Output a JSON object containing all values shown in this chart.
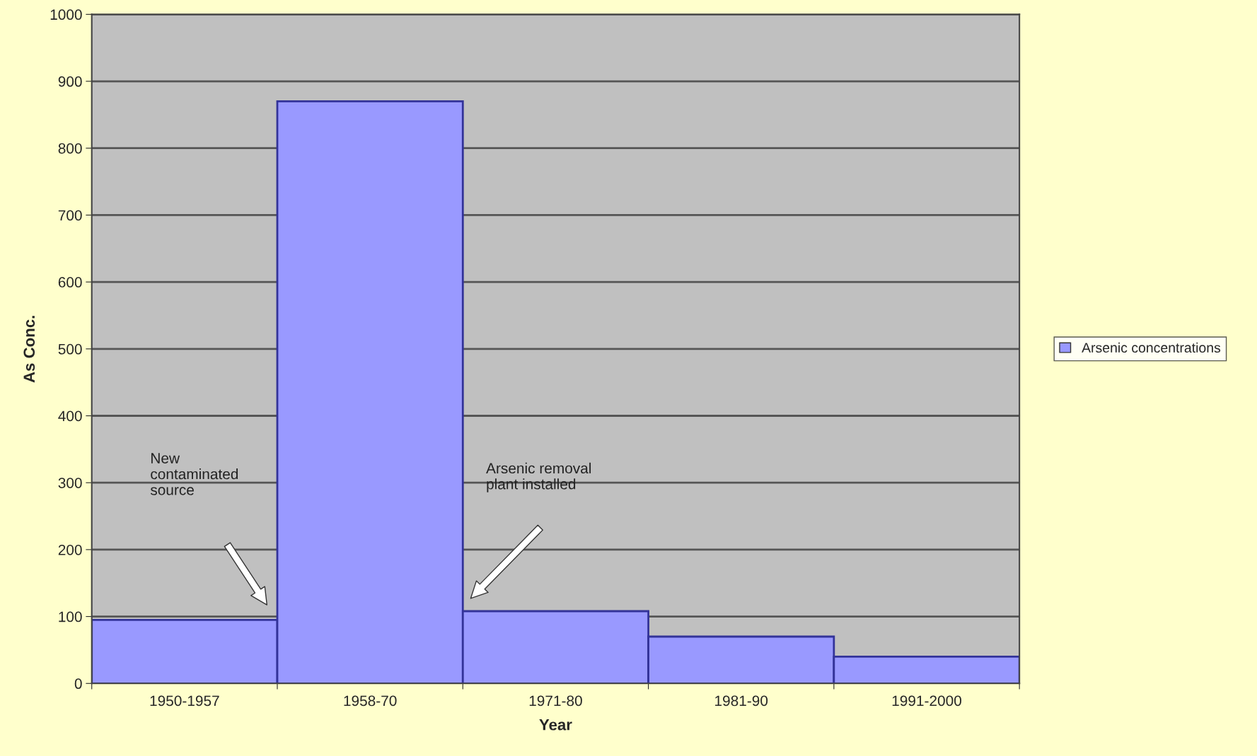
{
  "chart_data": {
    "type": "bar",
    "xlabel": "Year",
    "ylabel": "As Conc.",
    "categories": [
      "1950-1957",
      "1958-70",
      "1971-80",
      "1981-90",
      "1991-2000"
    ],
    "series": [
      {
        "name": "Arsenic concentrations",
        "color": "#9999ff",
        "values": [
          95,
          870,
          108,
          70,
          40
        ]
      }
    ],
    "ylim": [
      0,
      1000
    ],
    "yticks": [
      0,
      100,
      200,
      300,
      400,
      500,
      600,
      700,
      800,
      900,
      1000
    ],
    "grid": "y",
    "legend": "right",
    "annotations": [
      "New\ncontaminated\nsource",
      "Arsenic removal\nplant installed"
    ]
  }
}
